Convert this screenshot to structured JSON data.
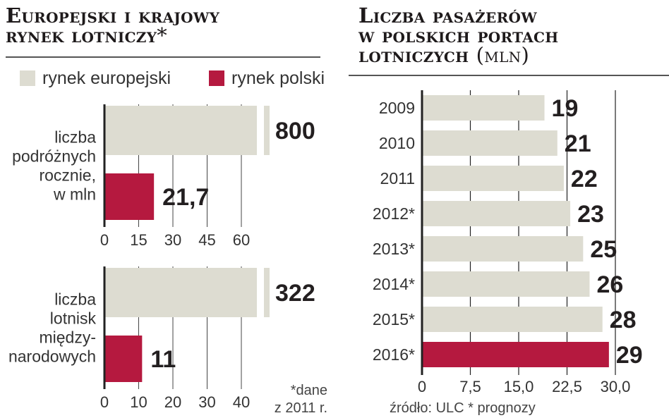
{
  "left_panel": {
    "title_line1": "Europejski i krajowy",
    "title_line2": "rynek lotniczy",
    "title_star": "*",
    "legend": [
      {
        "label": "rynek europejski",
        "color": "#dddcd1"
      },
      {
        "label": "rynek polski",
        "color": "#b5193f"
      }
    ],
    "footnote_line1": "*dane",
    "footnote_line2": "z 2011 r."
  },
  "right_panel": {
    "title_line1": "Liczba pasażerów",
    "title_line2": "w polskich portach",
    "title_line3": "lotniczych",
    "title_unit": "(mln)",
    "source": "źródło: ULC * prognozy"
  },
  "colors": {
    "europe": "#dddcd1",
    "poland": "#b5193f",
    "grid": "#222222"
  },
  "chart_data": [
    {
      "type": "bar",
      "orientation": "horizontal",
      "category_label": [
        "liczba",
        "podróżnych",
        "rocznie,",
        "w mln"
      ],
      "series": [
        {
          "name": "rynek europejski",
          "value": 800,
          "label": "800",
          "axis_break": true
        },
        {
          "name": "rynek polski",
          "value": 21.7,
          "label": "21,7"
        }
      ],
      "xlim": [
        0,
        60
      ],
      "ticks": [
        0,
        15,
        30,
        45,
        60
      ],
      "tick_labels": [
        "0",
        "15",
        "30",
        "45",
        "60"
      ],
      "grid": true
    },
    {
      "type": "bar",
      "orientation": "horizontal",
      "category_label": [
        "liczba",
        "lotnisk",
        "między-",
        "narodowych"
      ],
      "series": [
        {
          "name": "rynek europejski",
          "value": 322,
          "label": "322",
          "axis_break": true
        },
        {
          "name": "rynek polski",
          "value": 11,
          "label": "11"
        }
      ],
      "xlim": [
        0,
        40
      ],
      "ticks": [
        0,
        10,
        20,
        30,
        40
      ],
      "tick_labels": [
        "0",
        "10",
        "20",
        "30",
        "40"
      ],
      "grid": true
    },
    {
      "type": "bar",
      "orientation": "horizontal",
      "categories": [
        "2009",
        "2010",
        "2011",
        "2012*",
        "2013*",
        "2014*",
        "2015*",
        "2016*"
      ],
      "values": [
        19,
        21,
        22,
        23,
        25,
        26,
        28,
        29
      ],
      "value_labels": [
        "19",
        "21",
        "22",
        "23",
        "25",
        "26",
        "28",
        "29"
      ],
      "highlight_index": 7,
      "xlim": [
        0,
        30
      ],
      "ticks": [
        0,
        7.5,
        15,
        22.5,
        30
      ],
      "tick_labels": [
        "0",
        "7,5",
        "15,0",
        "22,5",
        "30,0"
      ],
      "grid": true
    }
  ]
}
